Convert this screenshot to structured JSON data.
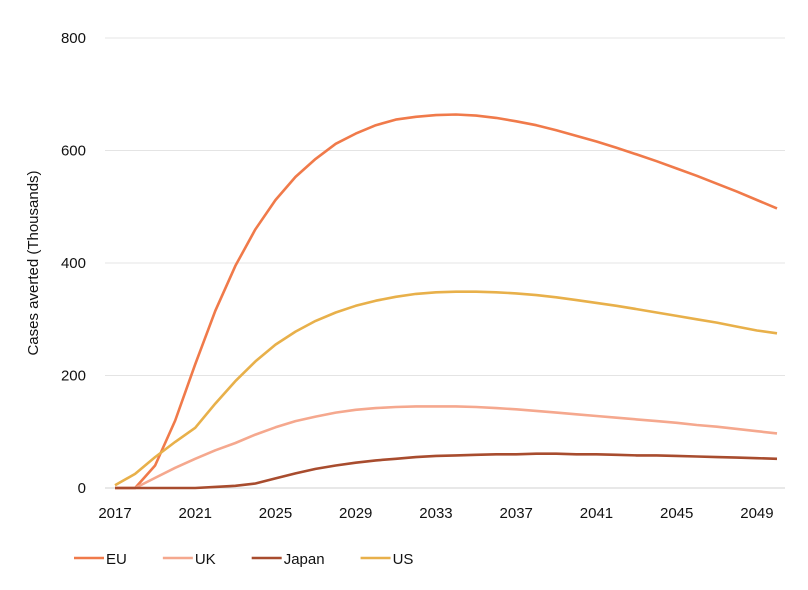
{
  "chart_data": {
    "type": "line",
    "title": "",
    "xlabel": "",
    "ylabel": "Cases averted (Thousands)",
    "ylim": [
      0,
      800
    ],
    "yticks": [
      0,
      200,
      400,
      600,
      800
    ],
    "xlim": [
      2017,
      2050
    ],
    "xticks": [
      2017,
      2021,
      2025,
      2029,
      2033,
      2037,
      2041,
      2045,
      2049
    ],
    "grid": "horizontal",
    "legend_position": "bottom-left",
    "x": [
      2017,
      2018,
      2019,
      2020,
      2021,
      2022,
      2023,
      2024,
      2025,
      2026,
      2027,
      2028,
      2029,
      2030,
      2031,
      2032,
      2033,
      2034,
      2035,
      2036,
      2037,
      2038,
      2039,
      2040,
      2041,
      2042,
      2043,
      2044,
      2045,
      2046,
      2047,
      2048,
      2049,
      2050
    ],
    "series": [
      {
        "name": "EU",
        "color": "#F07A4A",
        "values": [
          0,
          0,
          40,
          120,
          220,
          315,
          395,
          460,
          512,
          553,
          585,
          612,
          630,
          645,
          655,
          660,
          663,
          664,
          662,
          658,
          652,
          645,
          636,
          626,
          616,
          605,
          593,
          581,
          568,
          555,
          541,
          527,
          512,
          497
        ]
      },
      {
        "name": "UK",
        "color": "#F5A88E",
        "values": [
          0,
          0,
          18,
          36,
          52,
          67,
          80,
          95,
          108,
          119,
          127,
          134,
          139,
          142,
          144,
          145,
          145,
          145,
          144,
          142,
          140,
          137,
          134,
          131,
          128,
          125,
          122,
          119,
          116,
          112,
          109,
          105,
          101,
          97
        ]
      },
      {
        "name": "Japan",
        "color": "#A84C2E",
        "values": [
          0,
          0,
          0,
          0,
          0,
          2,
          4,
          8,
          17,
          26,
          34,
          40,
          45,
          49,
          52,
          55,
          57,
          58,
          59,
          60,
          60,
          61,
          61,
          60,
          60,
          59,
          58,
          58,
          57,
          56,
          55,
          54,
          53,
          52
        ]
      },
      {
        "name": "US",
        "color": "#E8B04A",
        "values": [
          5,
          25,
          55,
          82,
          107,
          150,
          190,
          225,
          255,
          278,
          297,
          312,
          324,
          333,
          340,
          345,
          348,
          349,
          349,
          348,
          346,
          343,
          339,
          334,
          329,
          324,
          318,
          312,
          306,
          300,
          294,
          287,
          280,
          275
        ]
      }
    ]
  }
}
